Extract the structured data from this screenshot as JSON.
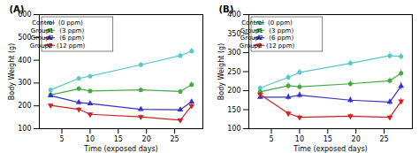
{
  "chart_data": [
    {
      "type": "line",
      "title": "(A)",
      "xlabel": "Time (exposed days)",
      "ylabel": "Body Weight (g)",
      "x": [
        3,
        8,
        10,
        19,
        26,
        28
      ],
      "xlim": [
        1,
        30
      ],
      "xticks": [
        5,
        10,
        15,
        20,
        25
      ],
      "ylim": [
        100,
        600
      ],
      "yticks": [
        100,
        200,
        300,
        400,
        500,
        600
      ],
      "grid": false,
      "legend": "upper left",
      "series": [
        {
          "name": "Control  (0 ppm)",
          "color": "#56C8C8",
          "marker": "circle",
          "values": [
            270,
            320,
            330,
            380,
            420,
            440
          ],
          "yerr": [
            8,
            10,
            10,
            10,
            12,
            12
          ]
        },
        {
          "name": "Group1   (3 ppm)",
          "color": "#44AA44",
          "marker": "circle",
          "values": [
            248,
            275,
            265,
            270,
            263,
            293
          ],
          "yerr": [
            8,
            10,
            10,
            10,
            10,
            12
          ]
        },
        {
          "name": "Group2   (6 ppm)",
          "color": "#3333CC",
          "marker": "triangle-up",
          "values": [
            245,
            215,
            210,
            185,
            183,
            218
          ],
          "yerr": [
            8,
            8,
            8,
            8,
            8,
            10
          ]
        },
        {
          "name": "Group3  (12 ppm)",
          "color": "#CC2222",
          "marker": "triangle-down",
          "values": [
            202,
            185,
            163,
            152,
            137,
            200
          ],
          "yerr": [
            8,
            8,
            8,
            8,
            8,
            10
          ]
        }
      ]
    },
    {
      "type": "line",
      "title": "(B)",
      "xlabel": "Time (exposed days)",
      "ylabel": "Body Weight (g)",
      "x": [
        3,
        8,
        10,
        19,
        26,
        28
      ],
      "xlim": [
        1,
        30
      ],
      "xticks": [
        5,
        10,
        15,
        20,
        25
      ],
      "ylim": [
        100,
        400
      ],
      "yticks": [
        100,
        150,
        200,
        250,
        300,
        350,
        400
      ],
      "grid": false,
      "legend": "upper left",
      "series": [
        {
          "name": "Control  (0 ppm)",
          "color": "#56C8C8",
          "marker": "circle",
          "values": [
            207,
            235,
            248,
            272,
            292,
            290
          ],
          "yerr": [
            5,
            8,
            8,
            8,
            10,
            10
          ]
        },
        {
          "name": "Group1   (3 ppm)",
          "color": "#44AA44",
          "marker": "circle",
          "values": [
            197,
            213,
            210,
            218,
            226,
            246
          ],
          "yerr": [
            5,
            8,
            8,
            8,
            8,
            10
          ]
        },
        {
          "name": "Group2   (6 ppm)",
          "color": "#3333CC",
          "marker": "triangle-up",
          "values": [
            183,
            183,
            188,
            175,
            170,
            212
          ],
          "yerr": [
            5,
            8,
            8,
            8,
            8,
            10
          ]
        },
        {
          "name": "Group3  (12 ppm)",
          "color": "#CC2222",
          "marker": "triangle-down",
          "values": [
            190,
            140,
            130,
            133,
            130,
            172
          ],
          "yerr": [
            5,
            6,
            6,
            6,
            6,
            8
          ]
        }
      ]
    }
  ]
}
